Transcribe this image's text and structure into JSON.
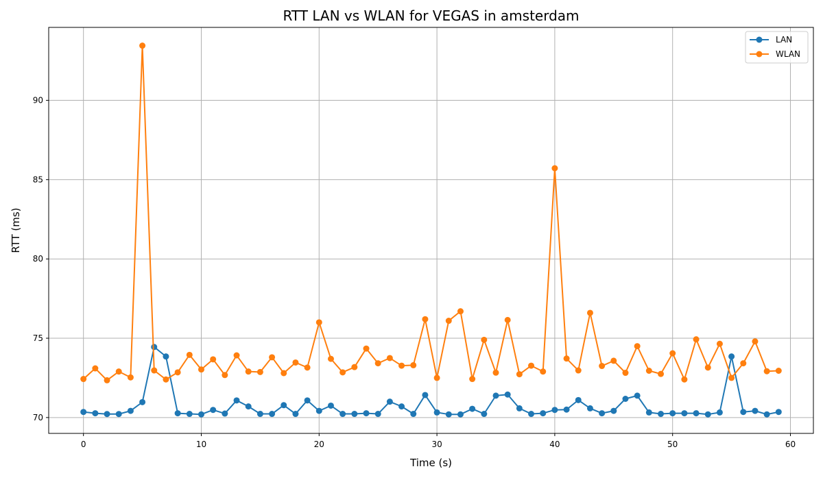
{
  "chart_data": {
    "type": "line",
    "title": "RTT LAN vs WLAN for VEGAS in amsterdam",
    "xlabel": "Time (s)",
    "ylabel": "RTT (ms)",
    "xlim": [
      -2.95,
      61.95
    ],
    "ylim": [
      69.0,
      94.6
    ],
    "xticks": [
      0,
      10,
      20,
      30,
      40,
      50,
      60
    ],
    "yticks": [
      70,
      75,
      80,
      85,
      90
    ],
    "grid": true,
    "legend_position": "top-right",
    "x": [
      0,
      1,
      2,
      3,
      4,
      5,
      6,
      7,
      8,
      9,
      10,
      11,
      12,
      13,
      14,
      15,
      16,
      17,
      18,
      19,
      20,
      21,
      22,
      23,
      24,
      25,
      26,
      27,
      28,
      29,
      30,
      31,
      32,
      33,
      34,
      35,
      36,
      37,
      38,
      39,
      40,
      41,
      42,
      43,
      44,
      45,
      46,
      47,
      48,
      49,
      50,
      51,
      52,
      53,
      54,
      55,
      56,
      57,
      58,
      59
    ],
    "series": [
      {
        "name": "LAN",
        "color": "#1f77b4",
        "values": [
          70.35,
          70.27,
          70.22,
          70.22,
          70.42,
          70.97,
          74.45,
          73.85,
          70.27,
          70.23,
          70.2,
          70.48,
          70.25,
          71.08,
          70.7,
          70.23,
          70.23,
          70.78,
          70.23,
          71.08,
          70.42,
          70.75,
          70.23,
          70.23,
          70.27,
          70.23,
          71.0,
          70.7,
          70.23,
          71.42,
          70.32,
          70.2,
          70.2,
          70.55,
          70.23,
          71.38,
          71.45,
          70.58,
          70.23,
          70.27,
          70.48,
          70.5,
          71.1,
          70.58,
          70.27,
          70.42,
          71.18,
          71.38,
          70.32,
          70.23,
          70.27,
          70.27,
          70.27,
          70.2,
          70.32,
          73.85,
          70.35,
          70.42,
          70.2,
          70.35
        ]
      },
      {
        "name": "WLAN",
        "color": "#ff7f0e",
        "values": [
          72.43,
          73.1,
          72.35,
          72.9,
          72.53,
          93.45,
          72.97,
          72.4,
          72.85,
          73.95,
          73.03,
          73.67,
          72.68,
          73.92,
          72.9,
          72.87,
          73.8,
          72.8,
          73.47,
          73.15,
          76.0,
          73.7,
          72.85,
          73.18,
          74.35,
          73.42,
          73.75,
          73.27,
          73.3,
          76.2,
          72.5,
          76.1,
          76.7,
          72.43,
          74.9,
          72.83,
          76.15,
          72.73,
          73.27,
          72.9,
          85.72,
          73.72,
          72.97,
          76.6,
          73.25,
          73.58,
          72.82,
          74.5,
          72.95,
          72.75,
          74.05,
          72.4,
          74.93,
          73.15,
          74.65,
          72.5,
          73.42,
          74.8,
          72.92,
          72.95
        ]
      }
    ]
  }
}
